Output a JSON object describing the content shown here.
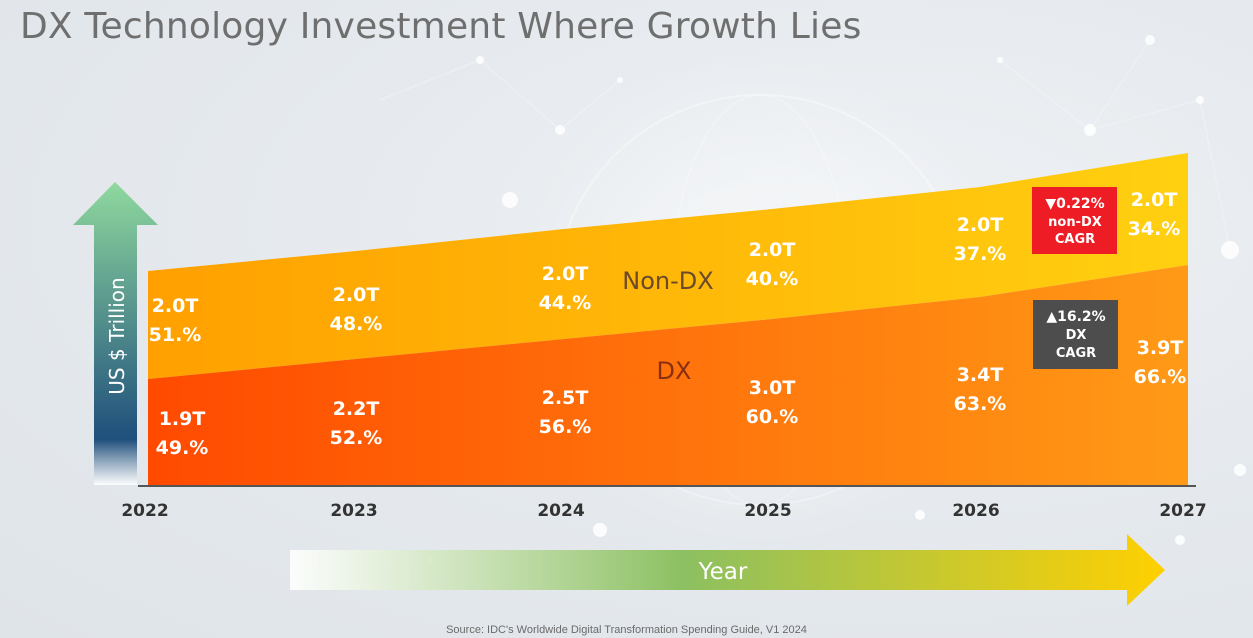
{
  "title": "DX Technology Investment Where Growth Lies",
  "source": "Source: IDC's Worldwide Digital Transformation Spending Guide, V1 2024",
  "colors": {
    "dx_dark": "#ff4a00",
    "dx_light": "#ff9a16",
    "nondx_dark": "#ffa000",
    "nondx_light": "#ffd010",
    "nondx_callout": "#ee1c25",
    "dx_callout": "#4d4d4d",
    "y_arrow_top": "#8fd99e",
    "y_arrow_bottom": "#1f4f7c",
    "x_arrow_mid": "#8cc061",
    "x_arrow_end": "#ffd000"
  },
  "chart_data": {
    "type": "area",
    "stacked": true,
    "x": [
      "2022",
      "2023",
      "2024",
      "2025",
      "2026",
      "2027"
    ],
    "series": [
      {
        "name": "DX",
        "values": [
          1.9,
          2.2,
          2.5,
          3.0,
          3.4,
          3.9
        ],
        "labels": [
          "1.9T",
          "2.2T",
          "2.5T",
          "3.0T",
          "3.4T",
          "3.9T"
        ],
        "shares": [
          "49.%",
          "52.%",
          "56.%",
          "60.%",
          "63.%",
          "66.%"
        ]
      },
      {
        "name": "Non-DX",
        "values": [
          2.0,
          2.0,
          2.0,
          2.0,
          2.0,
          2.0
        ],
        "labels": [
          "2.0T",
          "2.0T",
          "2.0T",
          "2.0T",
          "2.0T",
          "2.0T"
        ],
        "shares": [
          "51.%",
          "48.%",
          "44.%",
          "40.%",
          "37.%",
          "34.%"
        ]
      }
    ],
    "ylabel": "US $ Trillion",
    "xlabel": "Year",
    "callouts": [
      {
        "series": "Non-DX",
        "lines": [
          "▼0.22%",
          "non-DX",
          "CAGR"
        ]
      },
      {
        "series": "DX",
        "lines": [
          "▲16.2%",
          "DX",
          "CAGR"
        ]
      }
    ]
  }
}
